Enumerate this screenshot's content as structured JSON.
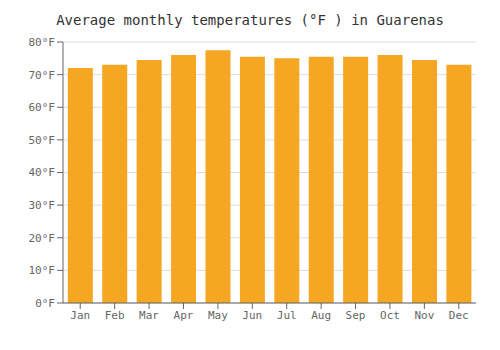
{
  "chart_data": {
    "type": "bar",
    "title": "Average monthly temperatures (°F ) in Guarenas",
    "categories": [
      "Jan",
      "Feb",
      "Mar",
      "Apr",
      "May",
      "Jun",
      "Jul",
      "Aug",
      "Sep",
      "Oct",
      "Nov",
      "Dec"
    ],
    "values": [
      72,
      73,
      74.5,
      76,
      77.5,
      75.5,
      75,
      75.5,
      75.5,
      76,
      74.5,
      73
    ],
    "color": "#F5A623",
    "ylim": [
      0,
      80
    ],
    "yticks": [
      {
        "value": 0,
        "label": "0°F"
      },
      {
        "value": 10,
        "label": "10°F"
      },
      {
        "value": 20,
        "label": "20°F"
      },
      {
        "value": 30,
        "label": "30°F"
      },
      {
        "value": 40,
        "label": "40°F"
      },
      {
        "value": 50,
        "label": "50°F"
      },
      {
        "value": 60,
        "label": "60°F"
      },
      {
        "value": 70,
        "label": "70°F"
      },
      {
        "value": 80,
        "label": "80°F"
      }
    ],
    "grid": true
  }
}
